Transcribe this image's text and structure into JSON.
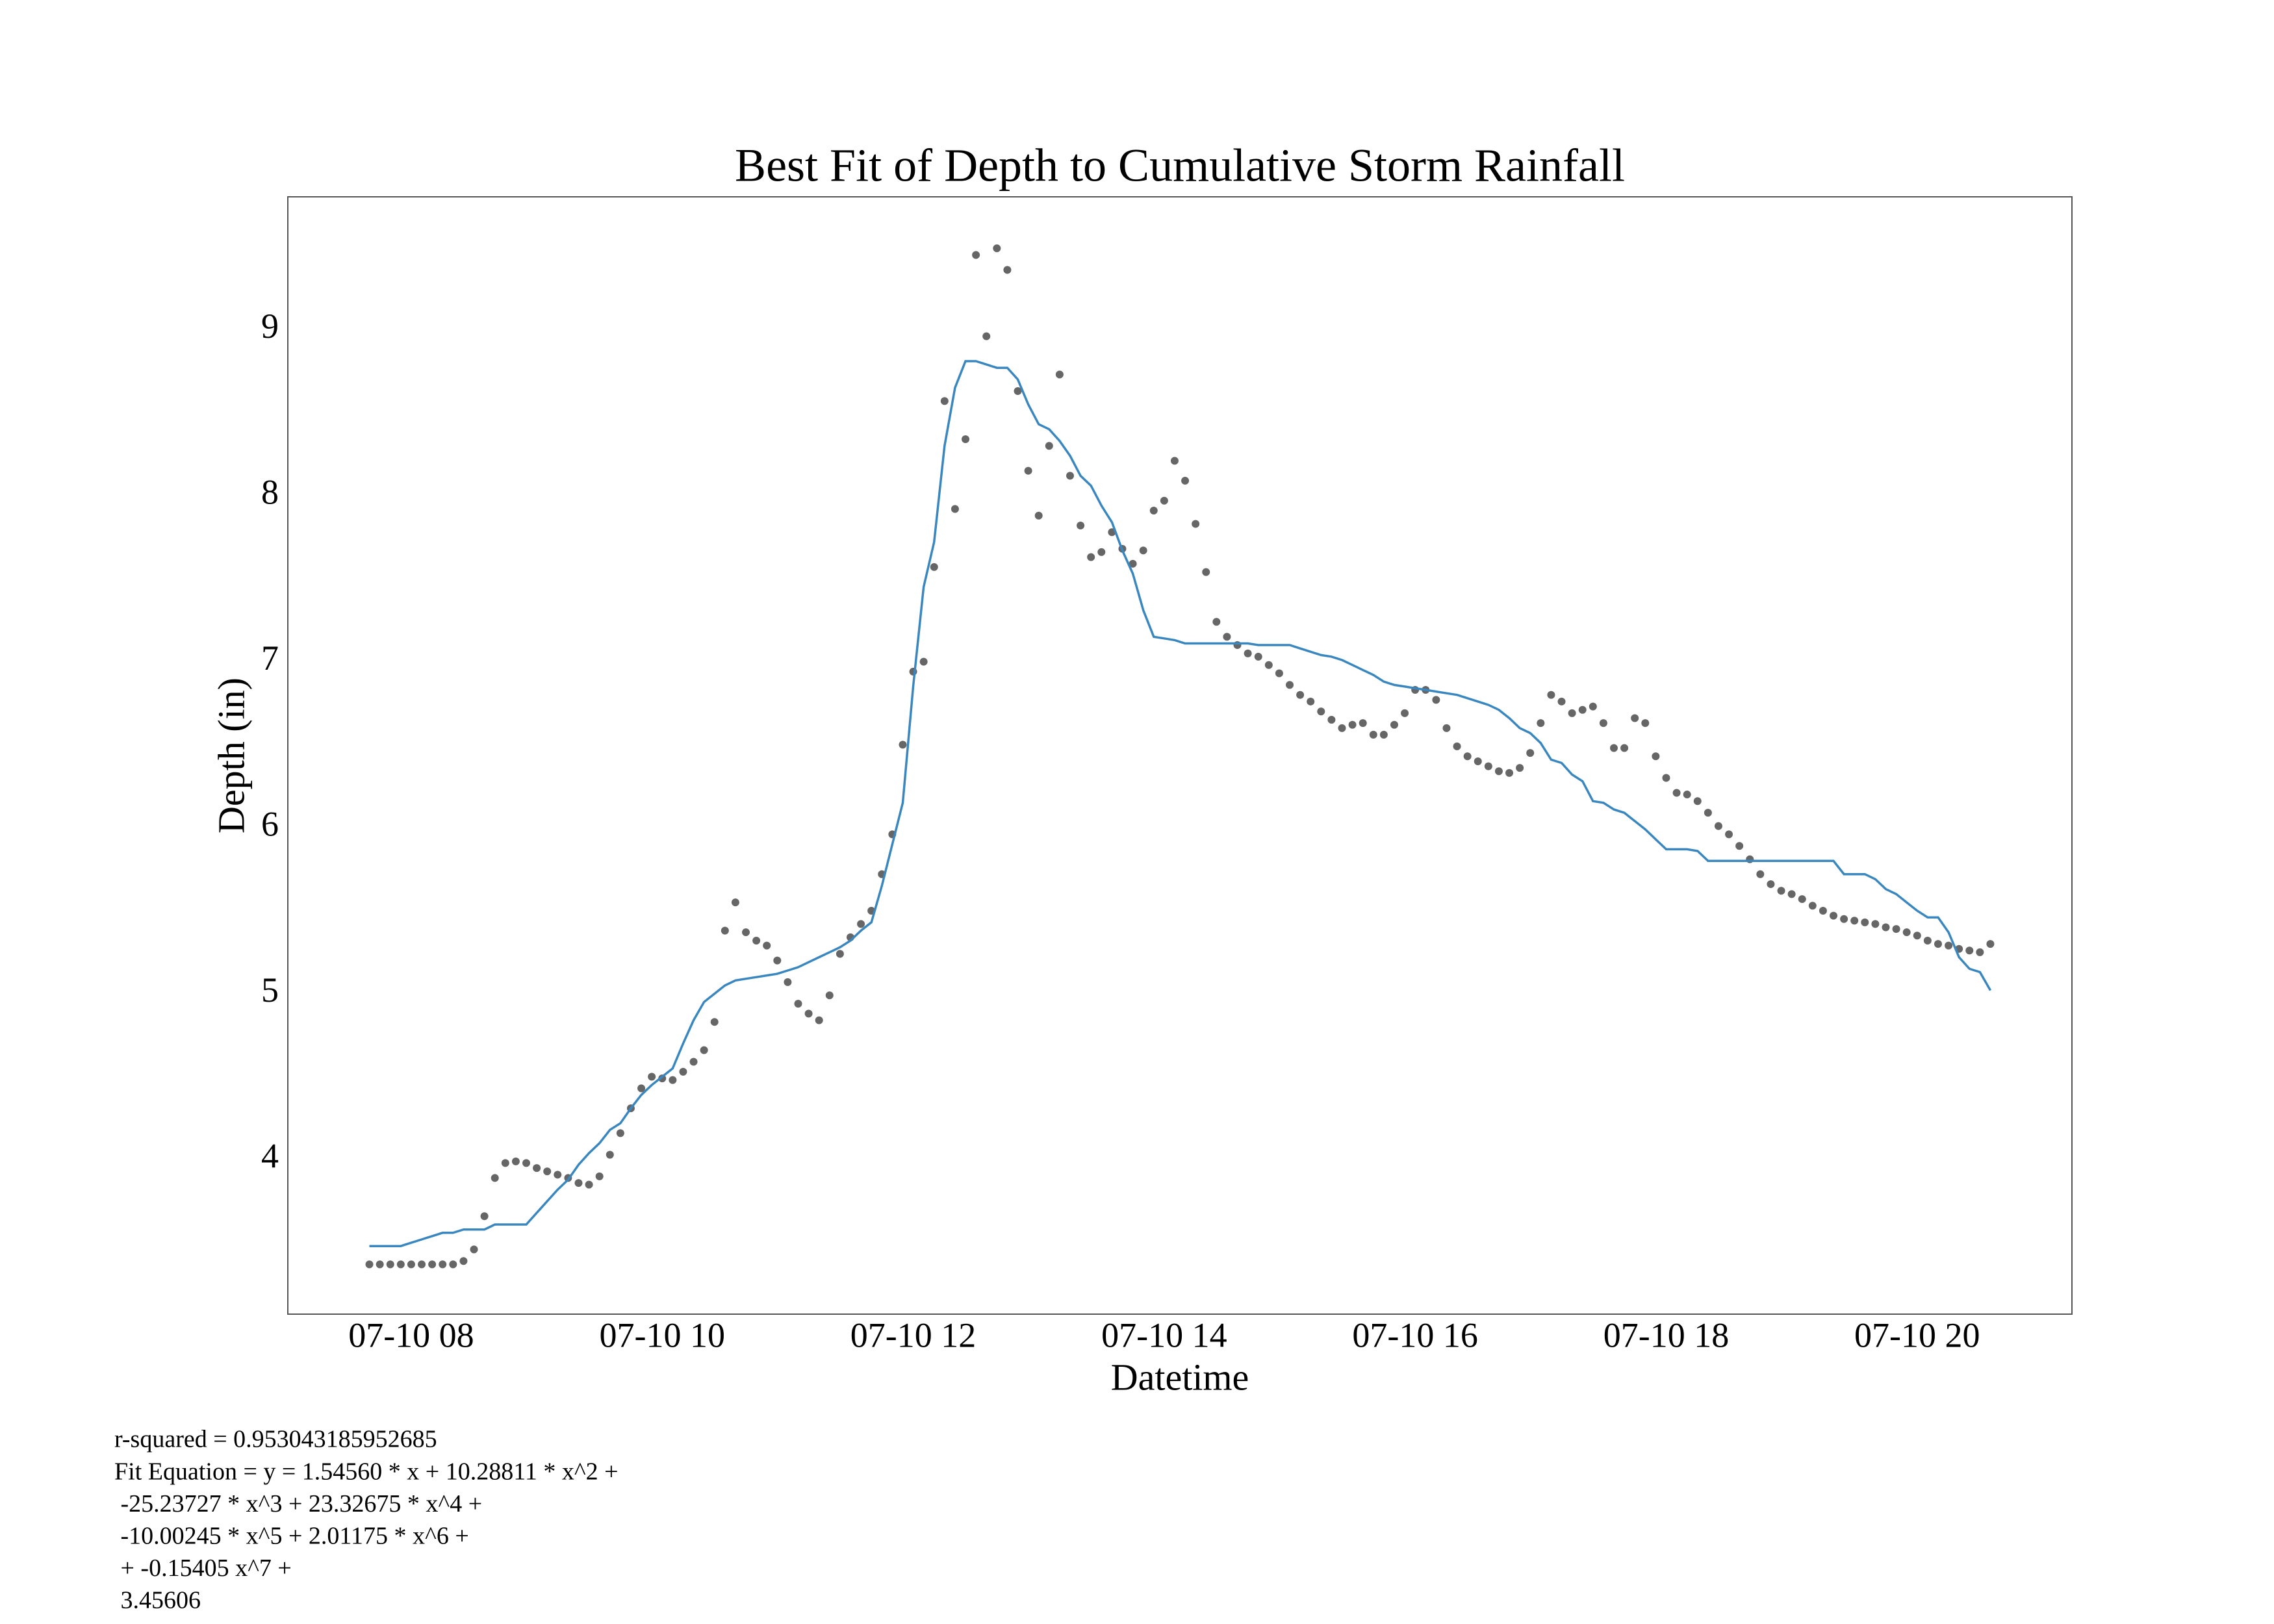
{
  "chart_data": {
    "type": "scatter",
    "title": "Best Fit of Depth to Cumulative Storm Rainfall",
    "x_label": "Datetime",
    "y_label": "Depth (in)",
    "x": [
      460,
      465,
      470,
      475,
      480,
      485,
      490,
      495,
      500,
      505,
      510,
      515,
      520,
      525,
      530,
      535,
      540,
      545,
      550,
      555,
      560,
      565,
      570,
      575,
      580,
      585,
      590,
      595,
      600,
      605,
      610,
      615,
      620,
      625,
      630,
      635,
      640,
      645,
      650,
      655,
      660,
      665,
      670,
      675,
      680,
      685,
      690,
      695,
      700,
      705,
      710,
      715,
      720,
      725,
      730,
      735,
      740,
      745,
      750,
      755,
      760,
      765,
      770,
      775,
      780,
      785,
      790,
      795,
      800,
      805,
      810,
      815,
      820,
      825,
      830,
      835,
      840,
      845,
      850,
      855,
      860,
      865,
      870,
      875,
      880,
      885,
      890,
      895,
      900,
      905,
      910,
      915,
      920,
      925,
      930,
      935,
      940,
      945,
      950,
      955,
      960,
      965,
      970,
      975,
      980,
      985,
      990,
      995,
      1000,
      1005,
      1010,
      1015,
      1020,
      1025,
      1030,
      1035,
      1040,
      1045,
      1050,
      1055,
      1060,
      1065,
      1070,
      1075,
      1080,
      1085,
      1090,
      1095,
      1100,
      1105,
      1110,
      1115,
      1120,
      1125,
      1130,
      1135,
      1140,
      1145,
      1150,
      1155,
      1160,
      1165,
      1170,
      1175,
      1180,
      1185,
      1190,
      1195,
      1200,
      1205,
      1210,
      1215,
      1220,
      1225,
      1230,
      1235
    ],
    "series": [
      {
        "type": "scatter",
        "color": "#666666",
        "values": [
          3.37,
          3.37,
          3.37,
          3.37,
          3.37,
          3.37,
          3.37,
          3.37,
          3.37,
          3.39,
          3.46,
          3.66,
          3.89,
          3.98,
          3.99,
          3.98,
          3.95,
          3.93,
          3.91,
          3.89,
          3.86,
          3.85,
          3.9,
          4.03,
          4.16,
          4.31,
          4.43,
          4.5,
          4.49,
          4.48,
          4.53,
          4.59,
          4.66,
          4.83,
          5.38,
          5.55,
          5.37,
          5.32,
          5.29,
          5.2,
          5.07,
          4.94,
          4.88,
          4.84,
          4.99,
          5.24,
          5.34,
          5.42,
          5.5,
          5.72,
          5.96,
          6.5,
          6.94,
          7.0,
          7.57,
          8.57,
          7.92,
          8.34,
          9.45,
          8.96,
          9.49,
          9.36,
          8.63,
          8.15,
          7.88,
          8.3,
          8.73,
          8.12,
          7.82,
          7.63,
          7.66,
          7.78,
          7.68,
          7.59,
          7.67,
          7.91,
          7.97,
          8.21,
          8.09,
          7.83,
          7.54,
          7.24,
          7.15,
          7.1,
          7.05,
          7.03,
          6.98,
          6.93,
          6.86,
          6.8,
          6.76,
          6.7,
          6.65,
          6.6,
          6.62,
          6.63,
          6.56,
          6.56,
          6.62,
          6.69,
          6.83,
          6.83,
          6.77,
          6.6,
          6.49,
          6.43,
          6.4,
          6.37,
          6.34,
          6.33,
          6.36,
          6.45,
          6.63,
          6.8,
          6.76,
          6.69,
          6.71,
          6.73,
          6.63,
          6.48,
          6.48,
          6.66,
          6.63,
          6.43,
          6.3,
          6.21,
          6.2,
          6.16,
          6.09,
          6.01,
          5.96,
          5.89,
          5.81,
          5.72,
          5.66,
          5.62,
          5.6,
          5.57,
          5.53,
          5.5,
          5.47,
          5.45,
          5.44,
          5.43,
          5.42,
          5.4,
          5.39,
          5.37,
          5.35,
          5.32,
          5.3,
          5.29,
          5.27,
          5.26,
          5.25,
          5.3
        ]
      },
      {
        "type": "line",
        "color": "#3a87c0",
        "values": [
          3.48,
          3.48,
          3.48,
          3.48,
          3.5,
          3.52,
          3.54,
          3.56,
          3.56,
          3.58,
          3.58,
          3.58,
          3.61,
          3.61,
          3.61,
          3.61,
          3.68,
          3.75,
          3.82,
          3.88,
          3.97,
          4.04,
          4.1,
          4.18,
          4.22,
          4.31,
          4.39,
          4.45,
          4.5,
          4.55,
          4.7,
          4.84,
          4.95,
          5.0,
          5.05,
          5.08,
          5.09,
          5.1,
          5.11,
          5.12,
          5.14,
          5.16,
          5.19,
          5.22,
          5.25,
          5.28,
          5.32,
          5.38,
          5.43,
          5.65,
          5.9,
          6.15,
          6.85,
          7.45,
          7.72,
          8.3,
          8.65,
          8.81,
          8.81,
          8.79,
          8.77,
          8.77,
          8.7,
          8.55,
          8.43,
          8.4,
          8.33,
          8.24,
          8.12,
          8.06,
          7.94,
          7.84,
          7.67,
          7.53,
          7.31,
          7.15,
          7.14,
          7.13,
          7.11,
          7.11,
          7.11,
          7.11,
          7.11,
          7.11,
          7.11,
          7.1,
          7.1,
          7.1,
          7.1,
          7.08,
          7.06,
          7.04,
          7.03,
          7.01,
          6.98,
          6.95,
          6.92,
          6.88,
          6.86,
          6.85,
          6.84,
          6.83,
          6.82,
          6.81,
          6.8,
          6.78,
          6.76,
          6.74,
          6.71,
          6.66,
          6.6,
          6.57,
          6.51,
          6.41,
          6.39,
          6.32,
          6.28,
          6.16,
          6.15,
          6.11,
          6.09,
          6.04,
          5.99,
          5.93,
          5.87,
          5.87,
          5.87,
          5.86,
          5.8,
          5.8,
          5.8,
          5.8,
          5.8,
          5.8,
          5.8,
          5.8,
          5.8,
          5.8,
          5.8,
          5.8,
          5.8,
          5.72,
          5.72,
          5.72,
          5.69,
          5.63,
          5.6,
          5.55,
          5.5,
          5.46,
          5.46,
          5.37,
          5.22,
          5.15,
          5.13,
          5.02
        ]
      }
    ],
    "xlim": [
      421,
      1274
    ],
    "ylim": [
      3.07,
      9.8
    ],
    "xticks": [
      {
        "value": 480,
        "label": "07-10 08"
      },
      {
        "value": 600,
        "label": "07-10 10"
      },
      {
        "value": 720,
        "label": "07-10 12"
      },
      {
        "value": 840,
        "label": "07-10 14"
      },
      {
        "value": 960,
        "label": "07-10 16"
      },
      {
        "value": 1080,
        "label": "07-10 18"
      },
      {
        "value": 1200,
        "label": "07-10 20"
      }
    ],
    "yticks": [
      4,
      5,
      6,
      7,
      8,
      9
    ],
    "grid": false,
    "annotations": [
      "r-squared = 0.953043185952685",
      "Fit Equation = y = 1.54560 * x + 10.28811 * x^2 +",
      " -25.23727 * x^3 + 23.32675 * x^4 +",
      " -10.00245 * x^5 + 2.01175 * x^6 +",
      " + -0.15405 x^7 +",
      " 3.45606"
    ]
  }
}
